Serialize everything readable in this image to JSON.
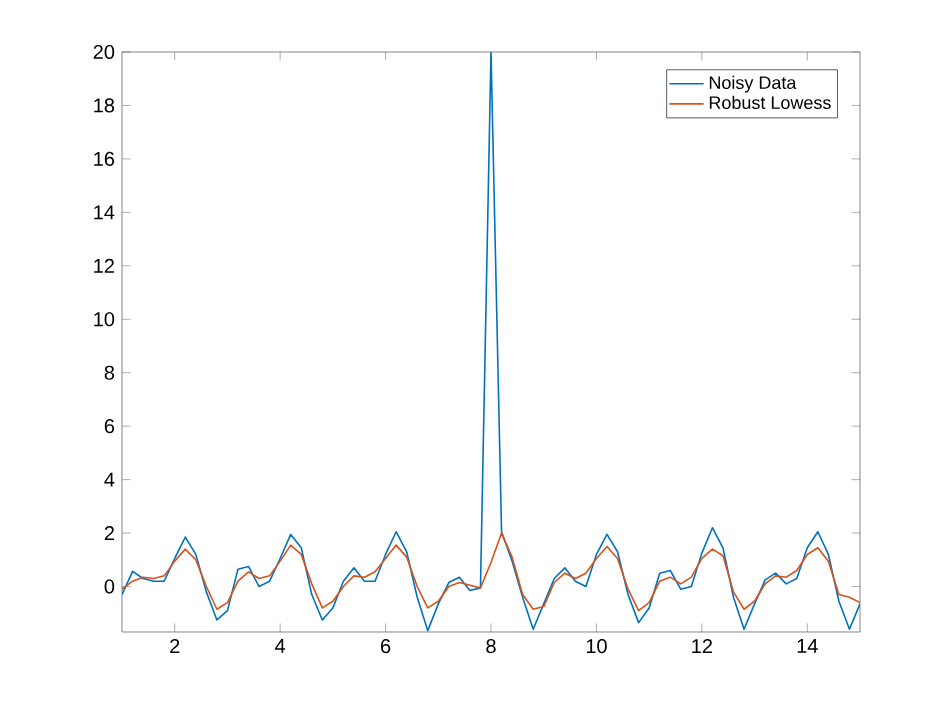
{
  "chart_data": {
    "type": "line",
    "x": [
      1.0,
      1.2,
      1.4,
      1.6,
      1.8,
      2.0,
      2.2,
      2.4,
      2.6,
      2.8,
      3.0,
      3.2,
      3.4,
      3.6,
      3.8,
      4.0,
      4.2,
      4.4,
      4.6,
      4.8,
      5.0,
      5.2,
      5.4,
      5.6,
      5.8,
      6.0,
      6.2,
      6.4,
      6.6,
      6.8,
      7.0,
      7.2,
      7.4,
      7.6,
      7.8,
      8.0,
      8.2,
      8.4,
      8.6,
      8.8,
      9.0,
      9.2,
      9.4,
      9.6,
      9.8,
      10.0,
      10.2,
      10.4,
      10.6,
      10.8,
      11.0,
      11.2,
      11.4,
      11.6,
      11.8,
      12.0,
      12.2,
      12.4,
      12.6,
      12.8,
      13.0,
      13.2,
      13.4,
      13.6,
      13.8,
      14.0,
      14.2,
      14.4,
      14.6,
      14.8,
      15.0
    ],
    "series": [
      {
        "name": "Noisy Data",
        "color": "#0072bd",
        "values": [
          -0.3,
          0.57,
          0.3,
          0.2,
          0.2,
          1.05,
          1.85,
          1.2,
          -0.2,
          -1.25,
          -0.9,
          0.65,
          0.75,
          0,
          0.2,
          1.05,
          1.95,
          1.45,
          -0.3,
          -1.25,
          -0.8,
          0.2,
          0.7,
          0.2,
          0.2,
          1.2,
          2.05,
          1.3,
          -0.4,
          -1.65,
          -0.65,
          0.15,
          0.35,
          -0.15,
          -0.05,
          20,
          2.05,
          0.95,
          -0.4,
          -1.6,
          -0.65,
          0.3,
          0.7,
          0.2,
          0,
          1.2,
          1.95,
          1.3,
          -0.3,
          -1.35,
          -0.8,
          0.5,
          0.6,
          -0.1,
          0,
          1.25,
          2.2,
          1.45,
          -0.4,
          -1.6,
          -0.65,
          0.25,
          0.5,
          0.1,
          0.3,
          1.45,
          2.05,
          1.2,
          -0.55,
          -1.6,
          -0.65
        ]
      },
      {
        "name": "Robust Lowess",
        "color": "#d95319",
        "values": [
          -0.1,
          0.2,
          0.35,
          0.3,
          0.4,
          0.95,
          1.4,
          1.0,
          0.0,
          -0.85,
          -0.6,
          0.2,
          0.55,
          0.3,
          0.4,
          0.95,
          1.55,
          1.2,
          0.1,
          -0.8,
          -0.55,
          0.0,
          0.4,
          0.35,
          0.55,
          1.05,
          1.55,
          1.1,
          0.0,
          -0.8,
          -0.55,
          0.0,
          0.15,
          0.05,
          -0.05,
          0.9,
          2.0,
          1.1,
          -0.3,
          -0.85,
          -0.75,
          0.15,
          0.5,
          0.3,
          0.5,
          1.05,
          1.5,
          1.05,
          -0.1,
          -0.9,
          -0.6,
          0.2,
          0.35,
          0.1,
          0.35,
          1.05,
          1.4,
          1.15,
          -0.2,
          -0.85,
          -0.55,
          0.1,
          0.4,
          0.35,
          0.6,
          1.2,
          1.45,
          0.95,
          -0.3,
          -0.4,
          -0.6
        ]
      }
    ],
    "xlim": [
      1,
      15
    ],
    "ylim": [
      -1.7,
      20
    ],
    "xticks": [
      2,
      4,
      6,
      8,
      10,
      12,
      14
    ],
    "yticks": [
      0,
      2,
      4,
      6,
      8,
      10,
      12,
      14,
      16,
      18,
      20
    ],
    "legend": "top right",
    "grid": false,
    "marker": "none",
    "line_style": "solid"
  }
}
